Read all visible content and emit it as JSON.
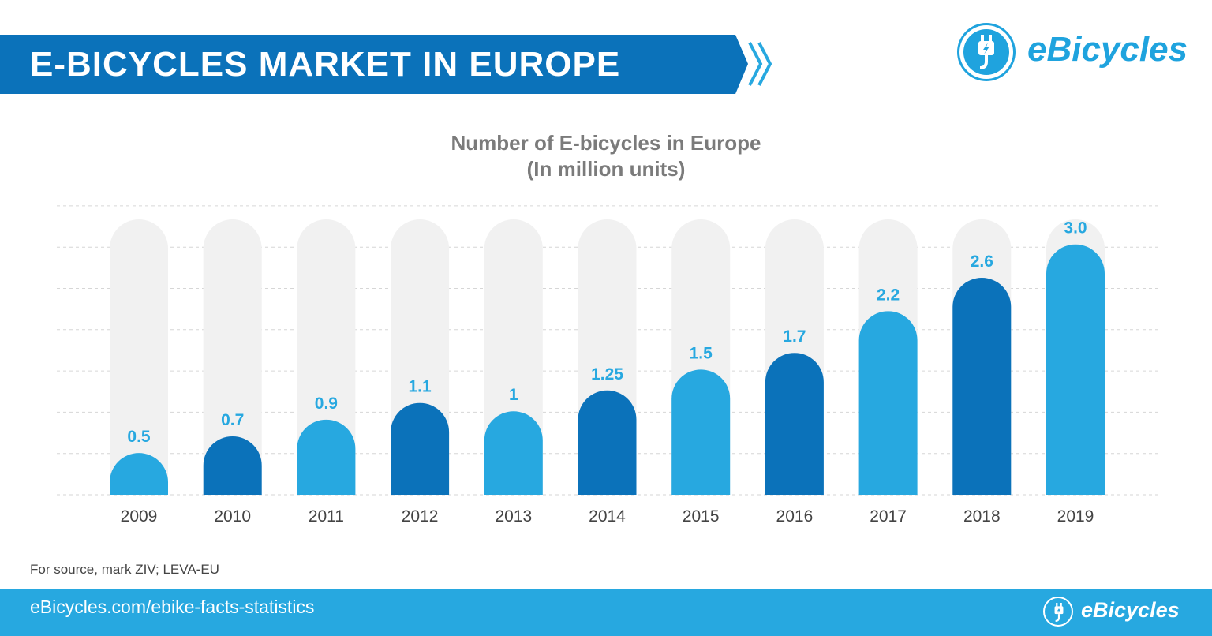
{
  "header": {
    "title": "E-BICYCLES MARKET IN EUROPE"
  },
  "brand": {
    "name": "eBicycles",
    "icon": "plug-icon",
    "color": "#1fa3de"
  },
  "colors": {
    "banner": "#0b72ba",
    "light_bar": "#27a8e0",
    "dark_bar": "#0b72ba",
    "track": "#f1f1f1",
    "footer": "#27a8e0"
  },
  "chart_data": {
    "type": "bar",
    "title": "Number of E-bicycles in Europe",
    "subtitle": "(In million units)",
    "categories": [
      "2009",
      "2010",
      "2011",
      "2012",
      "2013",
      "2014",
      "2015",
      "2016",
      "2017",
      "2018",
      "2019"
    ],
    "values": [
      0.5,
      0.7,
      0.9,
      1.1,
      1,
      1.25,
      1.5,
      1.7,
      2.2,
      2.6,
      3.0
    ],
    "value_labels": [
      "0.5",
      "0.7",
      "0.9",
      "1.1",
      "1",
      "1.25",
      "1.5",
      "1.7",
      "2.2",
      "2.6",
      "3.0"
    ],
    "bar_colors": [
      "#27a8e0",
      "#0b72ba",
      "#27a8e0",
      "#0b72ba",
      "#27a8e0",
      "#0b72ba",
      "#27a8e0",
      "#0b72ba",
      "#27a8e0",
      "#0b72ba",
      "#27a8e0"
    ],
    "ylim": [
      0,
      3.3
    ],
    "grid": true,
    "legend": "none"
  },
  "footer": {
    "source": "For source, mark ZIV; LEVA-EU",
    "url": "eBicycles.com/ebike-facts-statistics"
  }
}
